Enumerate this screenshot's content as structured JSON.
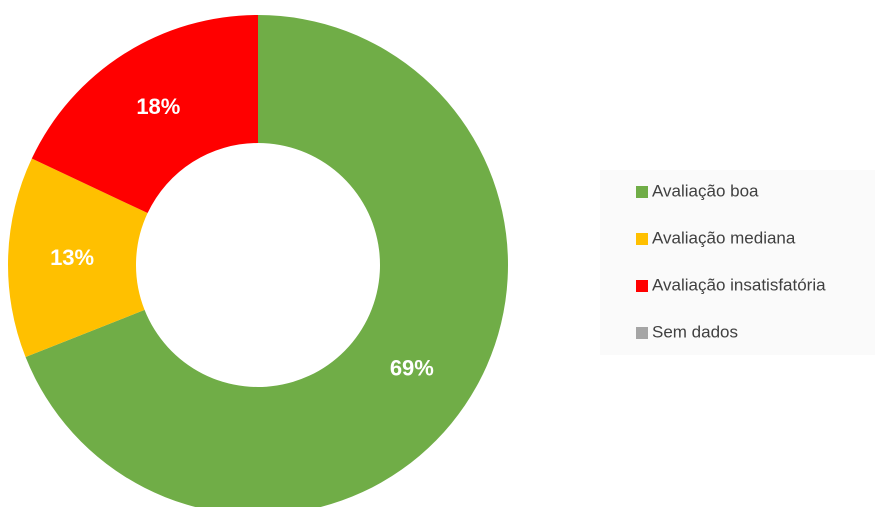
{
  "chart_data": {
    "type": "donut",
    "categories": [
      "Avaliação boa",
      "Avaliação mediana",
      "Avaliação insatisfatória",
      "Sem dados"
    ],
    "values": [
      69,
      13,
      18,
      0
    ],
    "value_labels": [
      "69%",
      "13%",
      "18%",
      null
    ],
    "colors": [
      "#70ad47",
      "#ffc000",
      "#ff0000",
      "#a5a5a5"
    ],
    "legend": "right"
  }
}
